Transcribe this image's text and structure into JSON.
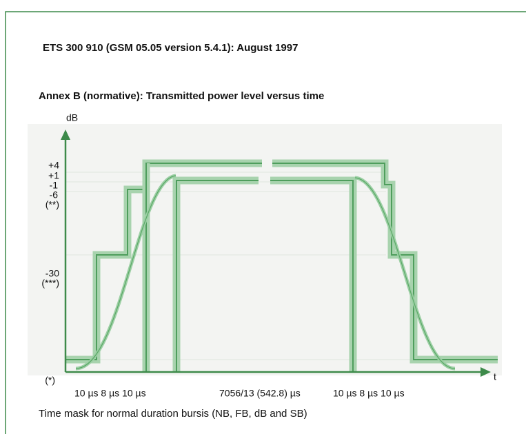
{
  "header": {
    "title": "ETS 300 910 (GSM 05.05 version 5.4.1): August 1997",
    "subtitle": "Annex B (normative): Transmitted power level versus time"
  },
  "diagram": {
    "y_axis_label": "dB",
    "x_axis_label": "t",
    "y_labels": [
      "+4",
      "+1",
      "-1",
      "-6",
      "(**)",
      "-30",
      "(***)",
      "(*)"
    ],
    "x_labels": [
      "10 µs 8 µs 10 µs",
      "7056/13 (542.8) µs",
      "10 µs 8 µs 10 µs"
    ],
    "caption": "Time mask for normal duration bursis (NB, FB, dB and SB)"
  }
}
